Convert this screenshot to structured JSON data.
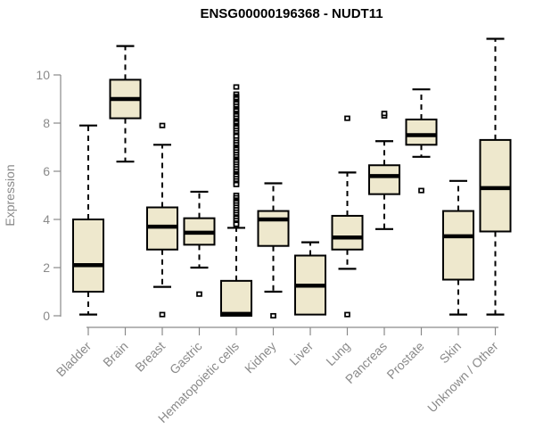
{
  "chart_data": {
    "type": "boxplot",
    "title": "ENSG00000196368 - NUDT11",
    "xlabel": "",
    "ylabel": "Expression",
    "yticks": [
      0,
      2,
      4,
      6,
      8,
      10
    ],
    "ylim": [
      -0.5,
      11.8
    ],
    "grid": false,
    "legend": "none",
    "categories": [
      "Bladder",
      "Brain",
      "Breast",
      "Gastric",
      "Hematopoietic cells",
      "Kidney",
      "Liver",
      "Lung",
      "Pancreas",
      "Prostate",
      "Skin",
      "Unknown / Other"
    ],
    "boxes": [
      {
        "category": "Bladder",
        "low": 0.05,
        "q1": 1.0,
        "median": 2.1,
        "q3": 4.0,
        "high": 7.9,
        "outliers": []
      },
      {
        "category": "Brain",
        "low": 6.4,
        "q1": 8.2,
        "median": 9.0,
        "q3": 9.8,
        "high": 11.2,
        "outliers": []
      },
      {
        "category": "Breast",
        "low": 1.2,
        "q1": 2.75,
        "median": 3.7,
        "q3": 4.5,
        "high": 7.1,
        "outliers": [
          7.9,
          0.05
        ]
      },
      {
        "category": "Gastric",
        "low": 2.0,
        "q1": 2.95,
        "median": 3.45,
        "q3": 4.05,
        "high": 5.15,
        "outliers": [
          0.9
        ]
      },
      {
        "category": "Hematopoietic cells",
        "low": 0.0,
        "q1": 0.0,
        "median": 0.08,
        "q3": 1.45,
        "high": 3.65,
        "outliers": [
          9.5,
          9.2,
          9.1,
          9.05,
          9.0,
          8.9,
          8.85,
          8.8,
          8.7,
          8.6,
          8.55,
          8.5,
          8.4,
          8.35,
          8.3,
          8.2,
          8.1,
          8.05,
          8.0,
          7.9,
          7.85,
          7.8,
          7.7,
          7.6,
          7.5,
          7.45,
          7.3,
          7.2,
          7.1,
          7.0,
          6.95,
          6.9,
          6.8,
          6.7,
          6.6,
          6.5,
          6.45,
          6.4,
          6.3,
          6.2,
          6.1,
          6.0,
          5.9,
          5.85,
          5.8,
          5.7,
          5.6,
          5.5,
          5.45,
          5.0,
          4.9,
          4.8,
          4.75,
          4.7,
          4.6,
          4.5,
          4.4,
          4.3,
          4.2,
          4.1,
          4.05,
          3.95,
          3.85,
          3.8
        ]
      },
      {
        "category": "Kidney",
        "low": 1.0,
        "q1": 2.9,
        "median": 4.0,
        "q3": 4.35,
        "high": 5.5,
        "outliers": [
          0.0
        ]
      },
      {
        "category": "Liver",
        "low": 0.05,
        "q1": 0.05,
        "median": 1.25,
        "q3": 2.5,
        "high": 3.05,
        "outliers": []
      },
      {
        "category": "Lung",
        "low": 1.95,
        "q1": 2.75,
        "median": 3.25,
        "q3": 4.15,
        "high": 5.95,
        "outliers": [
          8.2,
          0.05
        ]
      },
      {
        "category": "Pancreas",
        "low": 3.6,
        "q1": 5.05,
        "median": 5.8,
        "q3": 6.25,
        "high": 7.25,
        "outliers": [
          8.3,
          8.4
        ]
      },
      {
        "category": "Prostate",
        "low": 6.6,
        "q1": 7.1,
        "median": 7.5,
        "q3": 8.15,
        "high": 9.4,
        "outliers": [
          5.2
        ]
      },
      {
        "category": "Skin",
        "low": 0.05,
        "q1": 1.5,
        "median": 3.3,
        "q3": 4.35,
        "high": 5.6,
        "outliers": []
      },
      {
        "category": "Unknown / Other",
        "low": 0.05,
        "q1": 3.5,
        "median": 5.3,
        "q3": 7.3,
        "high": 11.5,
        "outliers": []
      }
    ]
  },
  "colors": {
    "box_fill": "#EEE8CD",
    "box_border": "#000000",
    "median": "#000000",
    "whisker": "#000000",
    "outlier_fill": "#FFFFFF",
    "axis": "#8A8A8A",
    "label": "#8A8A8A",
    "title": "#000000",
    "background": "#FFFFFF"
  }
}
